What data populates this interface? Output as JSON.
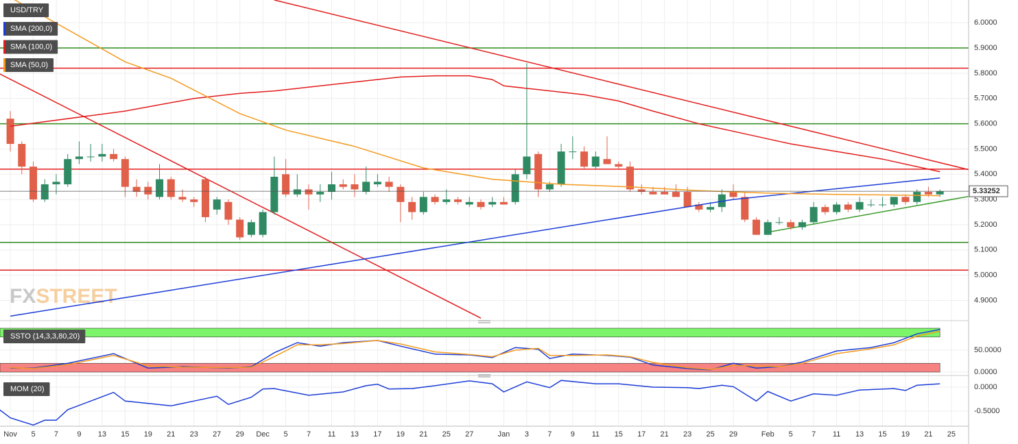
{
  "chart_data": [
    {
      "type": "candlestick",
      "title": "USD/TRY",
      "watermark": [
        "FX",
        "STREET"
      ],
      "x": [
        0,
        1,
        2,
        3,
        4,
        5,
        6,
        7,
        8,
        9,
        10,
        11,
        12,
        13,
        14,
        15,
        16,
        17,
        18,
        19,
        20,
        21,
        22,
        23,
        24,
        25,
        26,
        27,
        28,
        29,
        30,
        31,
        32,
        33,
        34,
        35,
        36,
        37,
        38,
        39,
        40,
        41,
        42,
        43,
        44,
        45,
        46,
        47,
        48,
        49,
        50,
        51,
        52,
        53,
        54,
        55,
        56,
        57,
        58,
        59,
        60,
        61,
        62,
        63,
        64,
        65,
        66,
        67,
        68,
        69,
        70,
        71,
        72,
        73,
        74,
        75,
        76,
        77,
        78,
        79,
        80,
        81
      ],
      "open": [
        5.62,
        5.52,
        5.43,
        5.3,
        5.36,
        5.36,
        5.46,
        5.47,
        5.47,
        5.48,
        5.46,
        5.35,
        5.35,
        5.31,
        5.38,
        5.31,
        5.3,
        5.38,
        5.26,
        5.29,
        5.22,
        5.16,
        5.16,
        5.25,
        5.4,
        5.32,
        5.34,
        5.32,
        5.33,
        5.36,
        5.36,
        5.33,
        5.36,
        5.37,
        5.35,
        5.29,
        5.25,
        5.31,
        5.29,
        5.3,
        5.28,
        5.29,
        5.28,
        5.29,
        5.29,
        5.4,
        5.48,
        5.34,
        5.36,
        5.49,
        5.49,
        5.43,
        5.46,
        5.44,
        5.43,
        5.34,
        5.33,
        5.33,
        5.33,
        5.33,
        5.28,
        5.26,
        5.27,
        5.33,
        5.31,
        5.22,
        5.16,
        5.21,
        5.21,
        5.19,
        5.21,
        5.27,
        5.25,
        5.28,
        5.26,
        5.28,
        5.28,
        5.28,
        5.31,
        5.29,
        5.33,
        5.32
      ],
      "high": [
        5.65,
        5.53,
        5.45,
        5.38,
        5.4,
        5.48,
        5.53,
        5.52,
        5.52,
        5.5,
        5.47,
        5.38,
        5.37,
        5.44,
        5.39,
        5.34,
        5.31,
        5.39,
        5.31,
        5.3,
        5.23,
        5.22,
        5.26,
        5.47,
        5.46,
        5.4,
        5.36,
        5.36,
        5.41,
        5.38,
        5.4,
        5.43,
        5.4,
        5.39,
        5.36,
        5.31,
        5.33,
        5.32,
        5.34,
        5.31,
        5.31,
        5.3,
        5.31,
        5.31,
        5.42,
        5.84,
        5.49,
        5.37,
        5.52,
        5.55,
        5.51,
        5.49,
        5.55,
        5.45,
        5.45,
        5.36,
        5.35,
        5.35,
        5.36,
        5.35,
        5.29,
        5.29,
        5.34,
        5.36,
        5.33,
        5.23,
        5.22,
        5.23,
        5.22,
        5.22,
        5.29,
        5.28,
        5.29,
        5.29,
        5.31,
        5.3,
        5.31,
        5.31,
        5.32,
        5.34,
        5.35,
        5.34
      ],
      "low": [
        5.49,
        5.4,
        5.29,
        5.29,
        5.32,
        5.35,
        5.44,
        5.45,
        5.45,
        5.45,
        5.31,
        5.31,
        5.3,
        5.3,
        5.3,
        5.29,
        5.27,
        5.21,
        5.24,
        5.2,
        5.14,
        5.15,
        5.15,
        5.24,
        5.31,
        5.31,
        5.26,
        5.29,
        5.3,
        5.34,
        5.31,
        5.32,
        5.35,
        5.33,
        5.21,
        5.22,
        5.24,
        5.28,
        5.28,
        5.28,
        5.27,
        5.26,
        5.27,
        5.28,
        5.28,
        5.38,
        5.31,
        5.33,
        5.35,
        5.46,
        5.42,
        5.42,
        5.44,
        5.42,
        5.33,
        5.32,
        5.32,
        5.32,
        5.31,
        5.27,
        5.25,
        5.25,
        5.25,
        5.3,
        5.21,
        5.16,
        5.16,
        5.2,
        5.18,
        5.18,
        5.2,
        5.24,
        5.24,
        5.25,
        5.25,
        5.27,
        5.27,
        5.27,
        5.28,
        5.28,
        5.31,
        5.31
      ],
      "close": [
        5.52,
        5.43,
        5.3,
        5.36,
        5.37,
        5.46,
        5.47,
        5.47,
        5.48,
        5.46,
        5.35,
        5.33,
        5.32,
        5.38,
        5.31,
        5.3,
        5.29,
        5.23,
        5.3,
        5.22,
        5.15,
        5.21,
        5.25,
        5.39,
        5.32,
        5.34,
        5.32,
        5.33,
        5.36,
        5.35,
        5.34,
        5.37,
        5.37,
        5.35,
        5.29,
        5.25,
        5.31,
        5.29,
        5.3,
        5.29,
        5.29,
        5.27,
        5.29,
        5.28,
        5.4,
        5.47,
        5.34,
        5.36,
        5.49,
        5.49,
        5.43,
        5.47,
        5.44,
        5.43,
        5.34,
        5.33,
        5.32,
        5.32,
        5.31,
        5.27,
        5.26,
        5.27,
        5.32,
        5.31,
        5.22,
        5.16,
        5.21,
        5.21,
        5.19,
        5.21,
        5.27,
        5.25,
        5.28,
        5.26,
        5.29,
        5.28,
        5.28,
        5.31,
        5.29,
        5.33,
        5.32,
        5.33252
      ],
      "up_color": "#2f8a63",
      "down_color": "#e0604a",
      "last_price": 5.33252,
      "overlays": [
        {
          "name": "SMA (200,0)",
          "color": "#1a3bd6",
          "x": [
            0,
            63,
            81
          ],
          "values": [
            4.838,
            5.3,
            5.385
          ]
        },
        {
          "name": "SMA (100,0)",
          "color": "#e21b1b",
          "x": [
            0,
            10,
            16,
            20,
            23,
            30,
            34,
            37,
            40,
            42,
            43,
            46,
            50,
            53,
            56,
            60,
            64,
            68,
            72,
            76,
            81
          ],
          "values": [
            5.59,
            5.65,
            5.7,
            5.72,
            5.73,
            5.765,
            5.785,
            5.79,
            5.79,
            5.775,
            5.75,
            5.735,
            5.715,
            5.69,
            5.65,
            5.6,
            5.56,
            5.52,
            5.49,
            5.46,
            5.41
          ]
        },
        {
          "name": "SMA (50,0)",
          "color": "#f39a1d",
          "x": [
            0,
            10,
            14,
            20,
            24,
            30,
            36,
            42,
            48,
            54,
            60,
            66,
            72,
            78,
            81
          ],
          "values": [
            6.1,
            5.845,
            5.78,
            5.64,
            5.575,
            5.51,
            5.425,
            5.38,
            5.36,
            5.35,
            5.335,
            5.325,
            5.32,
            5.317,
            5.315
          ]
        }
      ],
      "trend_lines": [
        {
          "color": "#e21b1b",
          "x": [
            -0.9,
            41
          ],
          "values": [
            5.797,
            4.83
          ]
        },
        {
          "color": "#e21b1b",
          "x": [
            23,
            83.5
          ],
          "values": [
            6.09,
            5.418
          ]
        },
        {
          "color": "#3a9a2a",
          "x": [
            65.7,
            83.5
          ],
          "values": [
            5.168,
            5.312
          ]
        }
      ],
      "levels": [
        {
          "value": 5.9,
          "color": "#2e8b1e"
        },
        {
          "value": 5.82,
          "color": "#e21b1b"
        },
        {
          "value": 5.6,
          "color": "#2e8b1e"
        },
        {
          "value": 5.42,
          "color": "#e21b1b"
        },
        {
          "value": 5.13,
          "color": "#2e8b1e"
        },
        {
          "value": 5.02,
          "color": "#e21b1b"
        }
      ],
      "xlim": [
        -0.9,
        83.5
      ],
      "ylim": [
        4.82,
        6.09
      ],
      "yticks": [
        {
          "value": 4.9,
          "label": "4.9000"
        },
        {
          "value": 5.0,
          "label": "5.0000"
        },
        {
          "value": 5.1,
          "label": "5.1000"
        },
        {
          "value": 5.2,
          "label": "5.2000"
        },
        {
          "value": 5.3,
          "label": "5.3000"
        },
        {
          "value": 5.4,
          "label": "5.4000"
        },
        {
          "value": 5.5,
          "label": "5.5000"
        },
        {
          "value": 5.6,
          "label": "5.6000"
        },
        {
          "value": 5.7,
          "label": "5.7000"
        },
        {
          "value": 5.8,
          "label": "5.8000"
        },
        {
          "value": 5.9,
          "label": "5.9000"
        },
        {
          "value": 6.0,
          "label": "6.0000"
        }
      ],
      "xticks": [
        {
          "value": 0,
          "label": "Nov"
        },
        {
          "value": 2,
          "label": "5"
        },
        {
          "value": 4,
          "label": "7"
        },
        {
          "value": 6,
          "label": "9"
        },
        {
          "value": 8,
          "label": "13"
        },
        {
          "value": 10,
          "label": "15"
        },
        {
          "value": 12,
          "label": "19"
        },
        {
          "value": 14,
          "label": "21"
        },
        {
          "value": 16,
          "label": "23"
        },
        {
          "value": 18,
          "label": "27"
        },
        {
          "value": 20,
          "label": "29"
        },
        {
          "value": 22,
          "label": "Dec"
        },
        {
          "value": 24,
          "label": "5"
        },
        {
          "value": 26,
          "label": "7"
        },
        {
          "value": 28,
          "label": "11"
        },
        {
          "value": 30,
          "label": "13"
        },
        {
          "value": 32,
          "label": "17"
        },
        {
          "value": 34,
          "label": "19"
        },
        {
          "value": 36,
          "label": "21"
        },
        {
          "value": 38,
          "label": "25"
        },
        {
          "value": 40,
          "label": "27"
        },
        {
          "value": 43,
          "label": "Jan"
        },
        {
          "value": 45,
          "label": "3"
        },
        {
          "value": 47,
          "label": "7"
        },
        {
          "value": 49,
          "label": "9"
        },
        {
          "value": 51,
          "label": "11"
        },
        {
          "value": 53,
          "label": "15"
        },
        {
          "value": 55,
          "label": "17"
        },
        {
          "value": 57,
          "label": "21"
        },
        {
          "value": 59,
          "label": "23"
        },
        {
          "value": 61,
          "label": "25"
        },
        {
          "value": 63,
          "label": "29"
        },
        {
          "value": 66,
          "label": "Feb"
        },
        {
          "value": 68,
          "label": "5"
        },
        {
          "value": 70,
          "label": "7"
        },
        {
          "value": 72,
          "label": "11"
        },
        {
          "value": 74,
          "label": "13"
        },
        {
          "value": 76,
          "label": "15"
        },
        {
          "value": 78,
          "label": "19"
        },
        {
          "value": 80,
          "label": "21"
        },
        {
          "value": 82,
          "label": "25"
        }
      ],
      "grid": true
    },
    {
      "type": "line",
      "title": "SSTO (14,3,3,80,20)",
      "bands": [
        {
          "from": 80,
          "to": 100,
          "color": "#7cf56a"
        },
        {
          "from": 0,
          "to": 20,
          "color": "#f78282"
        }
      ],
      "series": [
        {
          "color": "#1a3bd6",
          "x": [
            0,
            2,
            5,
            9,
            12,
            15,
            19,
            21,
            23,
            25,
            27,
            29,
            32,
            34,
            37,
            40,
            42,
            44,
            46,
            47,
            49,
            52,
            54,
            56,
            59,
            61,
            63,
            65,
            67,
            69,
            72,
            75,
            77,
            79,
            81
          ],
          "values": [
            9,
            9,
            20,
            42,
            9,
            12,
            9,
            12,
            44,
            67,
            59,
            67,
            72,
            59,
            41,
            39,
            33,
            56,
            52,
            31,
            41,
            38,
            34,
            16,
            8,
            5,
            20,
            9,
            12,
            23,
            48,
            56,
            67,
            87,
            97
          ]
        },
        {
          "color": "#f39a1d",
          "x": [
            0,
            2,
            5,
            9,
            12,
            15,
            19,
            21,
            23,
            25,
            27,
            29,
            32,
            34,
            37,
            40,
            42,
            44,
            46,
            47,
            49,
            52,
            54,
            56,
            59,
            61,
            63,
            65,
            67,
            69,
            72,
            75,
            77,
            79,
            81
          ],
          "values": [
            10,
            8,
            17,
            38,
            14,
            11,
            10,
            11,
            35,
            62,
            62,
            65,
            72,
            64,
            46,
            40,
            35,
            50,
            54,
            38,
            38,
            39,
            35,
            22,
            10,
            6,
            15,
            14,
            12,
            20,
            42,
            53,
            62,
            82,
            93
          ]
        }
      ],
      "xlim": [
        -0.9,
        83.5
      ],
      "ylim": [
        -7.8,
        104.7
      ],
      "yticks": [
        {
          "value": 0,
          "label": "0.0000"
        },
        {
          "value": 50,
          "label": "50.0000"
        }
      ]
    },
    {
      "type": "line",
      "title": "MOM (20)",
      "series": [
        {
          "color": "#1a3bd6",
          "x": [
            -1,
            0,
            2,
            3,
            4,
            5,
            7,
            9,
            10,
            12,
            14,
            16,
            18,
            19,
            21,
            22,
            23,
            26,
            29,
            31,
            32,
            33,
            35,
            37,
            40,
            42,
            43,
            45,
            47,
            48,
            51,
            53,
            56,
            59,
            60,
            62,
            63,
            65,
            66,
            68,
            70,
            72,
            74,
            77,
            78,
            79,
            81
          ],
          "values": [
            -0.46,
            -0.64,
            -0.79,
            -0.69,
            -0.69,
            -0.47,
            -0.29,
            -0.11,
            -0.29,
            -0.34,
            -0.39,
            -0.29,
            -0.19,
            -0.36,
            -0.21,
            -0.04,
            -0.03,
            -0.17,
            -0.1,
            0.03,
            0.06,
            -0.04,
            -0.03,
            0.03,
            0.13,
            0.07,
            -0.1,
            0.11,
            -0.01,
            0.14,
            0.07,
            0.07,
            0,
            -0.01,
            -0.03,
            0.04,
            0.01,
            -0.29,
            -0.09,
            -0.29,
            -0.14,
            -0.17,
            -0.06,
            -0.03,
            -0.07,
            0.04,
            0.07
          ]
        }
      ],
      "xlim": [
        -0.9,
        83.5
      ],
      "ylim": [
        -0.814,
        0.171
      ],
      "yticks": [
        {
          "value": 0,
          "label": "0.0000"
        },
        {
          "value": -0.5,
          "label": "-0.5000"
        }
      ]
    }
  ]
}
